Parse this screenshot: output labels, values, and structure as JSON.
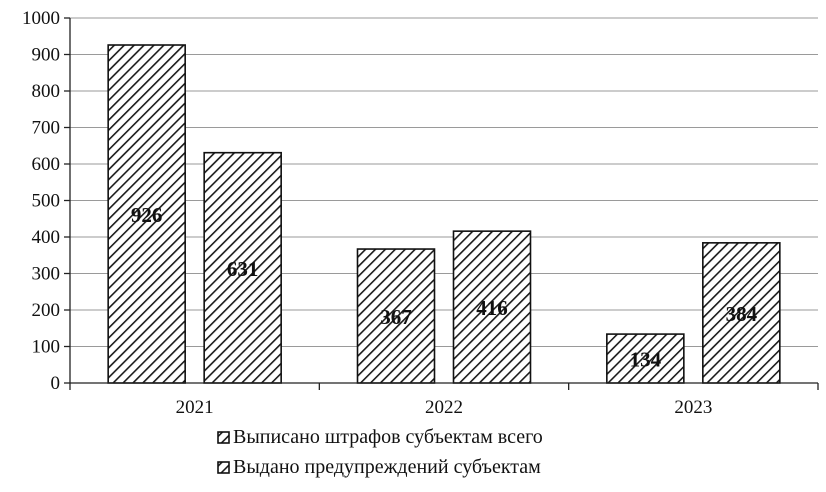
{
  "chart_data": {
    "type": "bar",
    "categories": [
      "2021",
      "2022",
      "2023"
    ],
    "series": [
      {
        "name": "Выписано штрафов субъектам всего",
        "values": [
          926,
          367,
          134
        ]
      },
      {
        "name": "Выдано предупреждений субъектам",
        "values": [
          631,
          416,
          384
        ]
      }
    ],
    "yticks": [
      "0",
      "100",
      "200",
      "300",
      "400",
      "500",
      "600",
      "700",
      "800",
      "900",
      "1000"
    ],
    "ylim": [
      0,
      1000
    ],
    "title": "",
    "xlabel": "",
    "ylabel": "",
    "grid": true,
    "legend_position": "bottom",
    "colors": {
      "bar_hatch": "#1a1a1a",
      "background": "#ffffff",
      "grid": "#9a9a9a"
    }
  }
}
